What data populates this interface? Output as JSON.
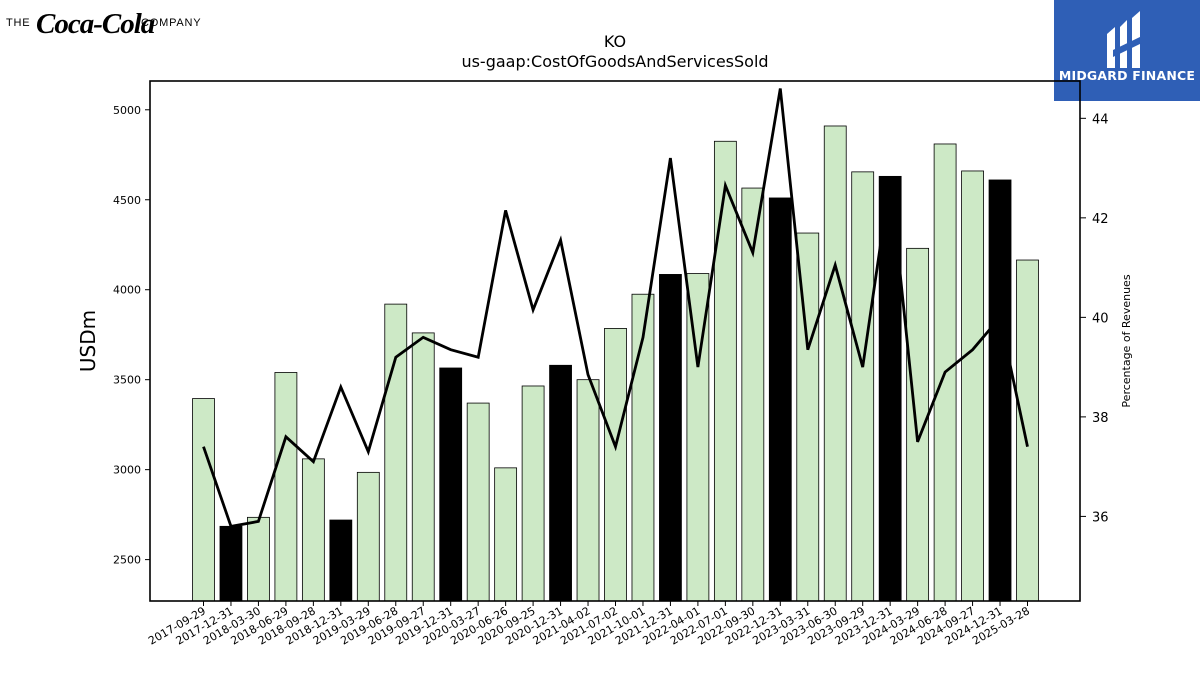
{
  "brand": {
    "coke_pre": "THE",
    "coke_script": "Coca-Cola",
    "coke_post": "COMPANY",
    "midgard_name": "MIDGARD FINANCE"
  },
  "chart_data": {
    "type": "bar",
    "title": "KO",
    "subtitle": "us-gaap:CostOfGoodsAndServicesSold",
    "ylabel": "USDm",
    "y2label": "Percentage of Revenues",
    "ylim": [
      2270,
      5160
    ],
    "y2lim": [
      34.3,
      44.75
    ],
    "yticks": [
      2500,
      3000,
      3500,
      4000,
      4500,
      5000
    ],
    "y2ticks": [
      36,
      38,
      40,
      42,
      44
    ],
    "categories": [
      "2017-09-29",
      "2017-12-31",
      "2018-03-30",
      "2018-06-29",
      "2018-09-28",
      "2018-12-31",
      "2019-03-29",
      "2019-06-28",
      "2019-09-27",
      "2019-12-31",
      "2020-03-27",
      "2020-06-26",
      "2020-09-25",
      "2020-12-31",
      "2021-04-02",
      "2021-07-02",
      "2021-10-01",
      "2021-12-31",
      "2022-04-01",
      "2022-07-01",
      "2022-09-30",
      "2022-12-31",
      "2023-03-31",
      "2023-06-30",
      "2023-09-29",
      "2023-12-31",
      "2024-03-29",
      "2024-06-28",
      "2024-09-27",
      "2024-12-31",
      "2025-03-28"
    ],
    "series": [
      {
        "type": "bar",
        "values": [
          3395,
          2685,
          2735,
          3540,
          3060,
          2720,
          2985,
          3920,
          3760,
          3565,
          3370,
          3010,
          3465,
          3580,
          3500,
          3785,
          3975,
          4085,
          4090,
          4825,
          4565,
          4510,
          4315,
          4910,
          4655,
          4630,
          4230,
          4810,
          4660,
          4610,
          4165
        ],
        "highlight": [
          false,
          true,
          false,
          false,
          false,
          true,
          false,
          false,
          false,
          true,
          false,
          false,
          false,
          true,
          false,
          false,
          false,
          true,
          false,
          false,
          false,
          true,
          false,
          false,
          false,
          true,
          false,
          false,
          false,
          true,
          false
        ]
      },
      {
        "type": "line",
        "axis": "right",
        "values": [
          37.4,
          35.8,
          35.9,
          37.6,
          37.1,
          38.6,
          37.3,
          39.2,
          39.6,
          39.35,
          39.2,
          42.15,
          40.15,
          41.55,
          38.85,
          37.4,
          39.6,
          43.2,
          39.0,
          42.65,
          41.3,
          44.6,
          39.35,
          41.05,
          39.0,
          42.8,
          37.5,
          38.9,
          39.35,
          40.0,
          37.4
        ]
      }
    ],
    "colors": {
      "bar": "#cde9c6",
      "bar_highlight": "#000000",
      "bar_edge": "#000000",
      "line": "#000000"
    },
    "grid": false,
    "legend": "none"
  }
}
